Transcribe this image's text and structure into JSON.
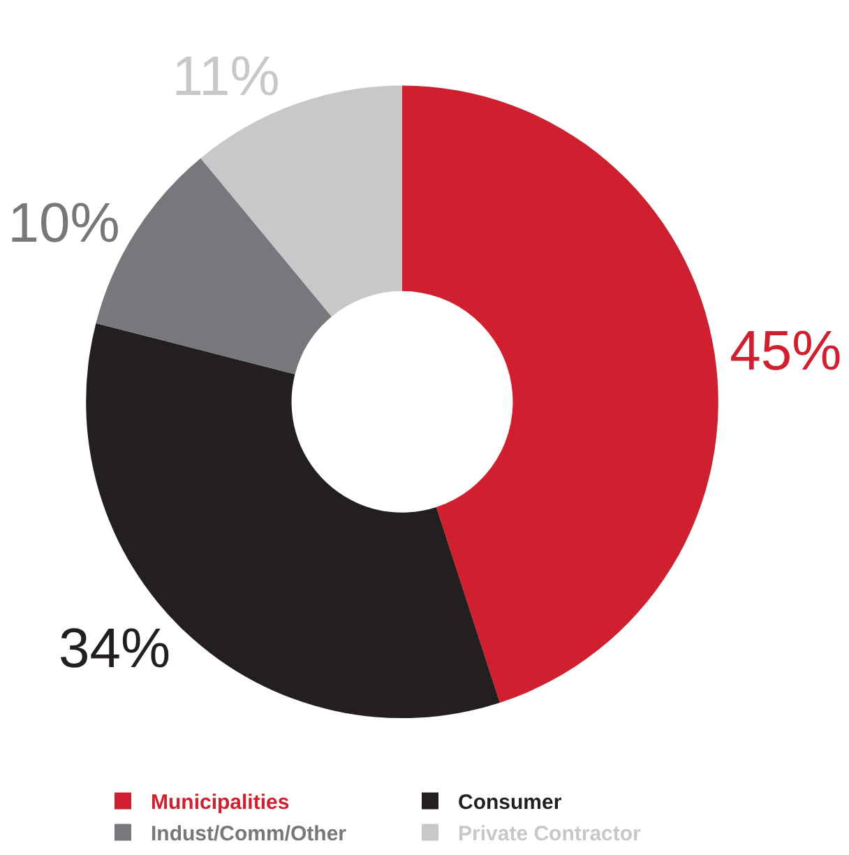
{
  "chart_data": {
    "type": "donut",
    "categories": [
      "Municipalities",
      "Consumer",
      "Indust/Comm/Other",
      "Private Contractor"
    ],
    "values": [
      45,
      34,
      10,
      11
    ],
    "colors": [
      "#d0202f",
      "#231f20",
      "#77787b",
      "#c7c8ca"
    ],
    "value_labels": [
      "45%",
      "34%",
      "10%",
      "11%"
    ],
    "legend": "bottom"
  }
}
